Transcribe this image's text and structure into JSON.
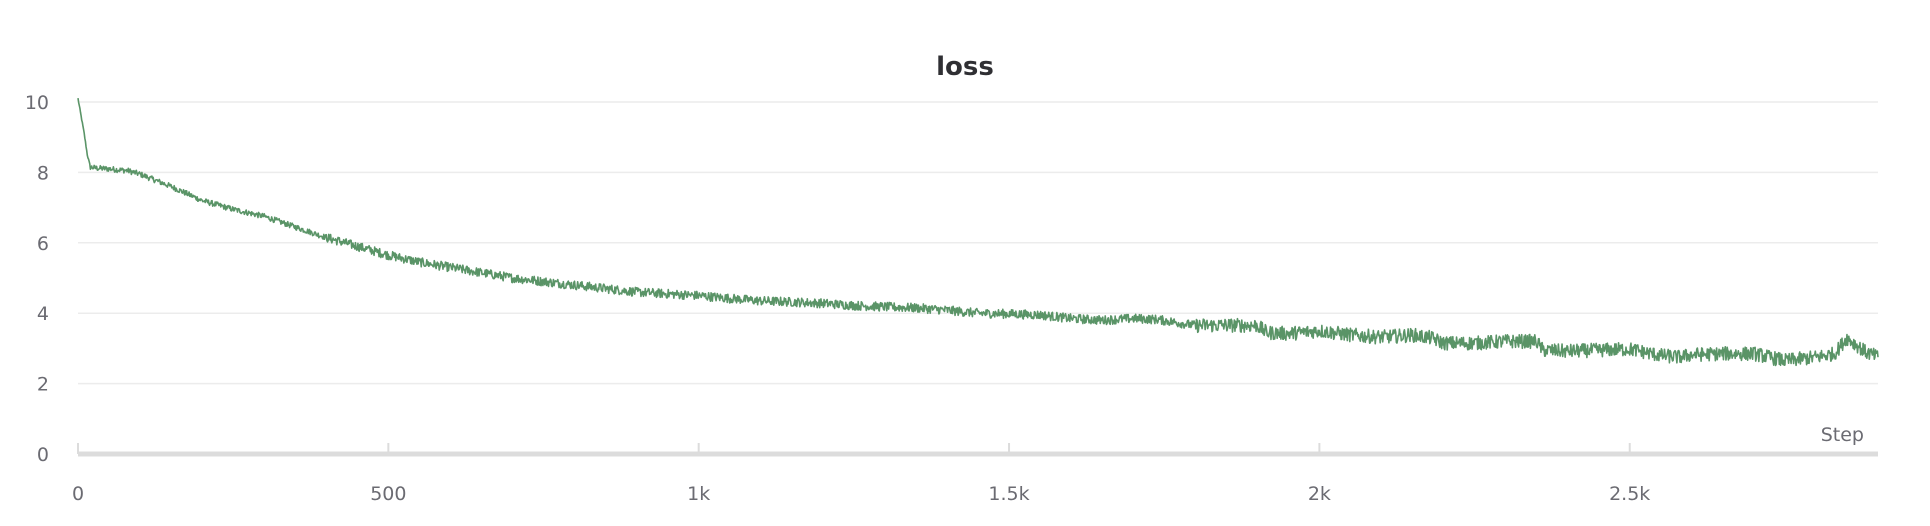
{
  "chart_data": {
    "type": "line",
    "title": "loss",
    "xlabel": "Step",
    "ylabel": "",
    "xlim": [
      0,
      2900
    ],
    "ylim": [
      0,
      10.6
    ],
    "grid": true,
    "legend": "none",
    "x_ticks": [
      {
        "value": 0,
        "label": "0"
      },
      {
        "value": 500,
        "label": "500"
      },
      {
        "value": 1000,
        "label": "1k"
      },
      {
        "value": 1500,
        "label": "1.5k"
      },
      {
        "value": 2000,
        "label": "2k"
      },
      {
        "value": 2500,
        "label": "2.5k"
      }
    ],
    "y_ticks": [
      {
        "value": 0,
        "label": "0"
      },
      {
        "value": 2,
        "label": "2"
      },
      {
        "value": 4,
        "label": "4"
      },
      {
        "value": 6,
        "label": "6"
      },
      {
        "value": 8,
        "label": "8"
      },
      {
        "value": 10,
        "label": "10"
      }
    ],
    "series": [
      {
        "color": "#5a9467",
        "x": [
          0,
          5,
          10,
          15,
          20,
          30,
          50,
          80,
          100,
          150,
          200,
          250,
          300,
          350,
          400,
          450,
          500,
          550,
          600,
          650,
          700,
          750,
          800,
          850,
          900,
          950,
          1000,
          1050,
          1100,
          1150,
          1200,
          1250,
          1300,
          1350,
          1390,
          1450,
          1500,
          1550,
          1600,
          1650,
          1700,
          1740,
          1800,
          1850,
          1900,
          1915,
          1950,
          2000,
          2050,
          2100,
          2150,
          2180,
          2200,
          2250,
          2300,
          2350,
          2360,
          2400,
          2450,
          2500,
          2550,
          2580,
          2600,
          2650,
          2700,
          2750,
          2800,
          2830,
          2850,
          2880,
          2900
        ],
        "values": [
          10.1,
          9.6,
          9.1,
          8.5,
          8.15,
          8.12,
          8.1,
          8.05,
          7.95,
          7.6,
          7.2,
          6.95,
          6.75,
          6.45,
          6.15,
          5.9,
          5.65,
          5.45,
          5.3,
          5.15,
          5.0,
          4.9,
          4.8,
          4.7,
          4.6,
          4.55,
          4.5,
          4.42,
          4.35,
          4.32,
          4.28,
          4.22,
          4.18,
          4.15,
          4.1,
          4.0,
          3.98,
          3.95,
          3.85,
          3.8,
          3.85,
          3.82,
          3.65,
          3.66,
          3.65,
          3.45,
          3.42,
          3.5,
          3.38,
          3.32,
          3.38,
          3.3,
          3.15,
          3.15,
          3.2,
          3.2,
          2.95,
          2.92,
          2.95,
          2.98,
          2.8,
          2.75,
          2.82,
          2.85,
          2.85,
          2.65,
          2.75,
          2.85,
          3.3,
          2.9,
          2.75
        ]
      }
    ]
  }
}
